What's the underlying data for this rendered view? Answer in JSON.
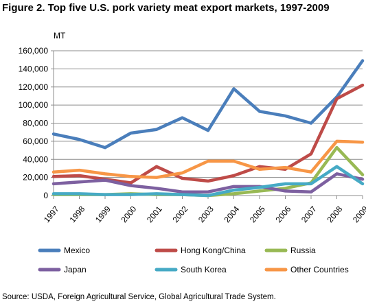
{
  "chart_data": {
    "type": "line",
    "title": "Figure 2. Top five U.S. pork variety meat export markets, 1997-2009",
    "ylabel": "MT",
    "source": "Source: USDA, Foreign Agricultural Service, Global Agricultural Trade System.",
    "categories": [
      "1997",
      "1998",
      "1999",
      "2000",
      "2001",
      "2002",
      "2003",
      "2004",
      "2005",
      "2006",
      "2007",
      "2008",
      "2009"
    ],
    "ylim": [
      0,
      160000
    ],
    "yticks": [
      "0",
      "20,000",
      "40,000",
      "60,000",
      "80,000",
      "100,000",
      "120,000",
      "140,000",
      "160,000"
    ],
    "grid": "horizontal",
    "legend_position": "bottom",
    "series": [
      {
        "name": "Mexico",
        "color": "#4A7EBB",
        "values": [
          68000,
          62000,
          53000,
          69000,
          73000,
          86000,
          72000,
          118000,
          93000,
          88000,
          80000,
          109000,
          149000
        ]
      },
      {
        "name": "Hong Kong/China",
        "color": "#BE4B48",
        "values": [
          21000,
          22000,
          18000,
          14000,
          32000,
          19000,
          16000,
          22000,
          32000,
          29000,
          46000,
          107000,
          122000
        ]
      },
      {
        "name": "Russia",
        "color": "#98B954",
        "values": [
          1000,
          1000,
          1000,
          2000,
          1000,
          1000,
          0,
          2000,
          5000,
          8000,
          14000,
          53000,
          23000
        ]
      },
      {
        "name": "Japan",
        "color": "#7D60A0",
        "values": [
          13000,
          15000,
          17000,
          11000,
          8000,
          4000,
          4000,
          10000,
          10000,
          5000,
          4000,
          24000,
          18000
        ]
      },
      {
        "name": "South Korea",
        "color": "#46AAC5",
        "values": [
          2000,
          2000,
          1000,
          1000,
          2000,
          1000,
          0,
          6000,
          9000,
          13000,
          13000,
          32000,
          13000
        ]
      },
      {
        "name": "Other Countries",
        "color": "#F79646",
        "values": [
          26000,
          28000,
          24000,
          21000,
          20000,
          25000,
          38000,
          38000,
          29000,
          31000,
          26000,
          60000,
          59000
        ]
      }
    ]
  }
}
